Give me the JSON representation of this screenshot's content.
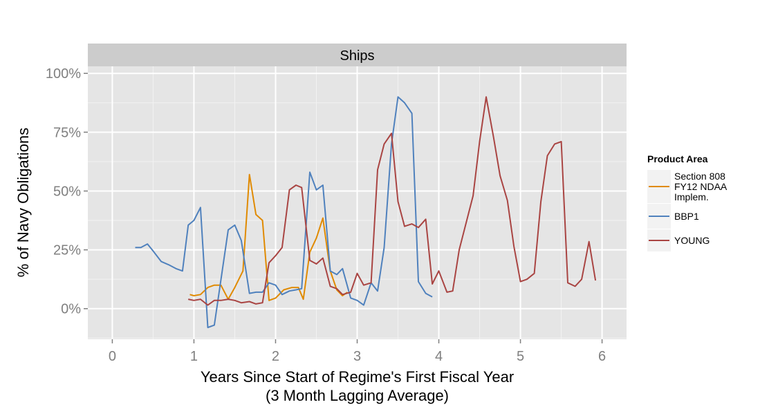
{
  "chart_data": {
    "type": "line",
    "facet_label": "Ships",
    "xlabel_line1": "Years Since Start of Regime's First Fiscal Year",
    "xlabel_line2": "(3 Month Lagging Average)",
    "ylabel": "% of Navy Obligations",
    "xlim": [
      -0.3,
      6.3
    ],
    "ylim": [
      -0.13,
      1.03
    ],
    "x_ticks": [
      0,
      1,
      2,
      3,
      4,
      5,
      6
    ],
    "x_tick_labels": [
      "0",
      "1",
      "2",
      "3",
      "4",
      "5",
      "6"
    ],
    "y_ticks": [
      0,
      0.25,
      0.5,
      0.75,
      1.0
    ],
    "y_tick_labels": [
      "0%",
      "25%",
      "50%",
      "75%",
      "100%"
    ],
    "grid": true,
    "legend": {
      "title": "Product Area",
      "placement": "right"
    },
    "series": [
      {
        "name": "Section 808 FY12 NDAA Implem.",
        "label_lines": [
          "Section 808",
          "FY12 NDAA",
          "Implem."
        ],
        "color": "#E08A00",
        "points": [
          [
            0.95,
            0.06
          ],
          [
            1.0,
            0.055
          ],
          [
            1.08,
            0.06
          ],
          [
            1.17,
            0.09
          ],
          [
            1.25,
            0.1
          ],
          [
            1.33,
            0.1
          ],
          [
            1.42,
            0.04
          ],
          [
            1.5,
            0.09
          ],
          [
            1.6,
            0.16
          ],
          [
            1.68,
            0.57
          ],
          [
            1.76,
            0.4
          ],
          [
            1.84,
            0.375
          ],
          [
            1.92,
            0.035
          ],
          [
            2.0,
            0.045
          ],
          [
            2.1,
            0.08
          ],
          [
            2.2,
            0.09
          ],
          [
            2.28,
            0.09
          ],
          [
            2.34,
            0.04
          ],
          [
            2.42,
            0.24
          ],
          [
            2.5,
            0.3
          ],
          [
            2.58,
            0.385
          ],
          [
            2.67,
            0.16
          ],
          [
            2.75,
            0.08
          ],
          [
            2.82,
            0.055
          ],
          [
            2.88,
            0.07
          ]
        ]
      },
      {
        "name": "BBP1",
        "label_lines": [
          "BBP1"
        ],
        "color": "#4F81BD",
        "points": [
          [
            0.28,
            0.26
          ],
          [
            0.35,
            0.26
          ],
          [
            0.43,
            0.275
          ],
          [
            0.5,
            0.245
          ],
          [
            0.6,
            0.2
          ],
          [
            0.7,
            0.185
          ],
          [
            0.78,
            0.17
          ],
          [
            0.86,
            0.16
          ],
          [
            0.93,
            0.355
          ],
          [
            1.0,
            0.375
          ],
          [
            1.08,
            0.43
          ],
          [
            1.17,
            -0.08
          ],
          [
            1.25,
            -0.07
          ],
          [
            1.42,
            0.335
          ],
          [
            1.5,
            0.355
          ],
          [
            1.58,
            0.29
          ],
          [
            1.68,
            0.065
          ],
          [
            1.76,
            0.07
          ],
          [
            1.84,
            0.07
          ],
          [
            1.92,
            0.11
          ],
          [
            2.0,
            0.1
          ],
          [
            2.08,
            0.06
          ],
          [
            2.17,
            0.075
          ],
          [
            2.25,
            0.08
          ],
          [
            2.32,
            0.085
          ],
          [
            2.42,
            0.58
          ],
          [
            2.5,
            0.505
          ],
          [
            2.58,
            0.525
          ],
          [
            2.67,
            0.16
          ],
          [
            2.75,
            0.145
          ],
          [
            2.82,
            0.17
          ],
          [
            2.92,
            0.045
          ],
          [
            3.0,
            0.035
          ],
          [
            3.08,
            0.015
          ],
          [
            3.17,
            0.11
          ],
          [
            3.25,
            0.075
          ],
          [
            3.33,
            0.26
          ],
          [
            3.42,
            0.7
          ],
          [
            3.5,
            0.9
          ],
          [
            3.58,
            0.875
          ],
          [
            3.67,
            0.83
          ],
          [
            3.75,
            0.115
          ],
          [
            3.84,
            0.065
          ],
          [
            3.92,
            0.05
          ]
        ]
      },
      {
        "name": "YOUNG",
        "label_lines": [
          "YOUNG"
        ],
        "color": "#A94442",
        "points": [
          [
            0.93,
            0.04
          ],
          [
            1.0,
            0.035
          ],
          [
            1.08,
            0.04
          ],
          [
            1.17,
            0.015
          ],
          [
            1.25,
            0.035
          ],
          [
            1.33,
            0.035
          ],
          [
            1.42,
            0.04
          ],
          [
            1.5,
            0.035
          ],
          [
            1.58,
            0.025
          ],
          [
            1.68,
            0.03
          ],
          [
            1.76,
            0.02
          ],
          [
            1.84,
            0.025
          ],
          [
            1.92,
            0.195
          ],
          [
            2.0,
            0.225
          ],
          [
            2.08,
            0.26
          ],
          [
            2.17,
            0.505
          ],
          [
            2.25,
            0.525
          ],
          [
            2.32,
            0.515
          ],
          [
            2.42,
            0.205
          ],
          [
            2.5,
            0.19
          ],
          [
            2.58,
            0.215
          ],
          [
            2.67,
            0.095
          ],
          [
            2.75,
            0.085
          ],
          [
            2.82,
            0.06
          ],
          [
            2.92,
            0.07
          ],
          [
            3.0,
            0.15
          ],
          [
            3.08,
            0.1
          ],
          [
            3.17,
            0.11
          ],
          [
            3.25,
            0.59
          ],
          [
            3.33,
            0.7
          ],
          [
            3.42,
            0.745
          ],
          [
            3.5,
            0.455
          ],
          [
            3.58,
            0.35
          ],
          [
            3.67,
            0.36
          ],
          [
            3.75,
            0.345
          ],
          [
            3.84,
            0.38
          ],
          [
            3.92,
            0.105
          ],
          [
            4.0,
            0.16
          ],
          [
            4.1,
            0.07
          ],
          [
            4.17,
            0.075
          ],
          [
            4.25,
            0.25
          ],
          [
            4.42,
            0.48
          ],
          [
            4.5,
            0.71
          ],
          [
            4.58,
            0.9
          ],
          [
            4.67,
            0.73
          ],
          [
            4.75,
            0.565
          ],
          [
            4.84,
            0.46
          ],
          [
            4.92,
            0.265
          ],
          [
            5.0,
            0.115
          ],
          [
            5.08,
            0.125
          ],
          [
            5.17,
            0.15
          ],
          [
            5.25,
            0.455
          ],
          [
            5.33,
            0.65
          ],
          [
            5.42,
            0.7
          ],
          [
            5.5,
            0.71
          ],
          [
            5.58,
            0.11
          ],
          [
            5.67,
            0.095
          ],
          [
            5.75,
            0.125
          ],
          [
            5.84,
            0.285
          ],
          [
            5.92,
            0.12
          ]
        ]
      }
    ]
  }
}
